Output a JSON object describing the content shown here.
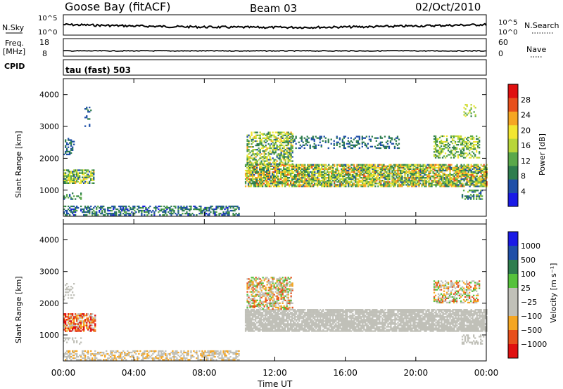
{
  "header": {
    "station": "Goose Bay (fitACF)",
    "beam": "Beam 03",
    "date": "02/Oct/2010"
  },
  "panels": {
    "nsky": {
      "left_label": "N.Sky",
      "right_label": "N.Search",
      "left_ticks": [
        "10^5",
        "10^0"
      ],
      "right_ticks": [
        "10^5",
        "10^0"
      ]
    },
    "freq": {
      "left_label_1": "Freq.",
      "left_label_2": "[MHz]",
      "right_label": "Nave",
      "left_ticks": [
        "18",
        "8"
      ],
      "right_ticks": [
        "60",
        "0"
      ]
    },
    "cpid": {
      "label": "CPID",
      "value": "tau (fast) 503"
    }
  },
  "colors": {
    "power_scale": [
      "#1a1ae6",
      "#1f4fa8",
      "#2e7d4e",
      "#5aa84a",
      "#b8d63a",
      "#f2e630",
      "#f5a623",
      "#e8501c",
      "#e01010"
    ],
    "velocity_scale": [
      "#1a1ae6",
      "#1f4fa8",
      "#2e7d4e",
      "#56c23c",
      "#c0c0b8",
      "#c0c0b8",
      "#f5a623",
      "#e8501c",
      "#e01010"
    ]
  },
  "chart_data": [
    {
      "type": "heatmap",
      "name": "power",
      "ylabel": "Slant Range [km]",
      "ylim": [
        180,
        4500
      ],
      "y_ticks": [
        1000,
        2000,
        3000,
        4000
      ],
      "colorbar_label": "Power [dB]",
      "colorbar_ticks": [
        4,
        8,
        12,
        16,
        20,
        24,
        28
      ],
      "colorbar_range": [
        0,
        32
      ],
      "scatter_regions": [
        {
          "t0": 0.0,
          "t1": 1.7,
          "r0": 1200,
          "r1": 1650,
          "density": 0.75,
          "level": [
            6,
            22
          ]
        },
        {
          "t0": 0.0,
          "t1": 1.0,
          "r0": 700,
          "r1": 900,
          "density": 0.35,
          "level": [
            6,
            14
          ]
        },
        {
          "t0": 0.0,
          "t1": 0.6,
          "r0": 2100,
          "r1": 2600,
          "density": 0.35,
          "level": [
            5,
            10
          ]
        },
        {
          "t0": 1.2,
          "t1": 1.6,
          "r0": 2900,
          "r1": 3600,
          "density": 0.25,
          "level": [
            5,
            10
          ]
        },
        {
          "t0": 0.0,
          "t1": 10.0,
          "r0": 200,
          "r1": 500,
          "density": 0.5,
          "level": [
            3,
            12
          ]
        },
        {
          "t0": 10.3,
          "t1": 24.0,
          "r0": 1100,
          "r1": 1800,
          "density": 0.8,
          "level": [
            6,
            26
          ]
        },
        {
          "t0": 10.4,
          "t1": 13.0,
          "r0": 1800,
          "r1": 2800,
          "density": 0.55,
          "level": [
            6,
            22
          ]
        },
        {
          "t0": 13.0,
          "t1": 19.0,
          "r0": 2300,
          "r1": 2700,
          "density": 0.3,
          "level": [
            5,
            10
          ]
        },
        {
          "t0": 21.0,
          "t1": 23.6,
          "r0": 2000,
          "r1": 2700,
          "density": 0.5,
          "level": [
            8,
            20
          ]
        },
        {
          "t0": 22.7,
          "t1": 23.4,
          "r0": 3300,
          "r1": 3700,
          "density": 0.3,
          "level": [
            8,
            20
          ]
        },
        {
          "t0": 22.6,
          "t1": 23.8,
          "r0": 700,
          "r1": 1000,
          "density": 0.45,
          "level": [
            5,
            16
          ]
        }
      ]
    },
    {
      "type": "heatmap",
      "name": "velocity",
      "ylabel": "Slant Range [km]",
      "ylim": [
        180,
        4500
      ],
      "y_ticks": [
        1000,
        2000,
        3000,
        4000
      ],
      "colorbar_label": "Velocity [m s⁻¹]",
      "colorbar_ticks": [
        "1000",
        "500",
        "100",
        "25",
        "−25",
        "−100",
        "−500",
        "−1000"
      ],
      "scatter_regions": [
        {
          "t0": 0.0,
          "t1": 1.8,
          "r0": 1100,
          "r1": 1650,
          "density": 0.75,
          "level": [
            5,
            8
          ]
        },
        {
          "t0": 0.0,
          "t1": 1.0,
          "r0": 700,
          "r1": 900,
          "density": 0.35,
          "level": [
            4,
            5
          ]
        },
        {
          "t0": 0.0,
          "t1": 0.6,
          "r0": 2100,
          "r1": 2600,
          "density": 0.3,
          "level": [
            4,
            5
          ]
        },
        {
          "t0": 0.0,
          "t1": 10.0,
          "r0": 200,
          "r1": 500,
          "density": 0.5,
          "level": [
            4,
            6
          ]
        },
        {
          "t0": 10.3,
          "t1": 24.0,
          "r0": 1100,
          "r1": 1800,
          "density": 0.85,
          "level": [
            4,
            5
          ]
        },
        {
          "t0": 10.4,
          "t1": 13.0,
          "r0": 1800,
          "r1": 2800,
          "density": 0.55,
          "level": [
            3,
            7
          ]
        },
        {
          "t0": 21.0,
          "t1": 23.6,
          "r0": 2000,
          "r1": 2700,
          "density": 0.5,
          "level": [
            3,
            7
          ]
        },
        {
          "t0": 22.6,
          "t1": 23.8,
          "r0": 700,
          "r1": 1000,
          "density": 0.4,
          "level": [
            4,
            5
          ]
        }
      ]
    }
  ],
  "xaxis": {
    "label": "Time UT",
    "ticks": [
      "00:00",
      "04:00",
      "08:00",
      "12:00",
      "16:00",
      "20:00",
      "00:00"
    ],
    "tick_hours": [
      0,
      4,
      8,
      12,
      16,
      20,
      24
    ],
    "range_hours": [
      0,
      24
    ]
  }
}
